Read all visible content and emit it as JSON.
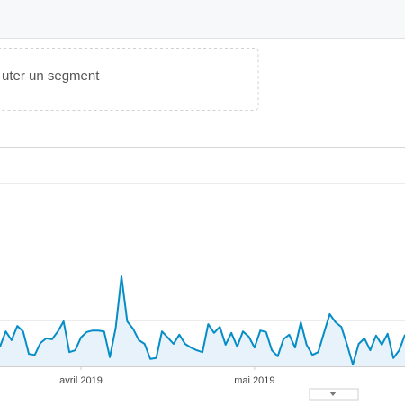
{
  "segment_text": "uter un segment",
  "chart_data": {
    "type": "line",
    "categories": [
      null,
      null,
      null,
      null,
      null,
      null,
      null,
      null,
      null,
      null,
      null,
      null,
      null,
      null,
      "avril 2019",
      null,
      null,
      null,
      null,
      null,
      null,
      null,
      null,
      null,
      null,
      null,
      null,
      null,
      null,
      null,
      null,
      null,
      null,
      null,
      null,
      null,
      null,
      null,
      null,
      null,
      null,
      null,
      null,
      null,
      "mai 2019",
      null,
      null,
      null,
      null,
      null,
      null,
      null,
      null,
      null,
      null,
      null,
      null,
      null,
      null,
      null,
      null,
      null,
      null,
      null,
      null,
      null,
      null,
      null,
      null,
      null,
      null
    ],
    "values": [
      43,
      76,
      57,
      88,
      76,
      27,
      25,
      51,
      61,
      59,
      76,
      98,
      31,
      35,
      63,
      75,
      78,
      78,
      76,
      20,
      84,
      196,
      98,
      82,
      57,
      49,
      16,
      18,
      76,
      63,
      49,
      69,
      49,
      41,
      35,
      31,
      92,
      73,
      86,
      47,
      73,
      43,
      76,
      65,
      41,
      78,
      75,
      35,
      22,
      59,
      69,
      41,
      96,
      47,
      25,
      31,
      73,
      114,
      96,
      86,
      47,
      4,
      49,
      61,
      35,
      67,
      47,
      71,
      18,
      35,
      69
    ],
    "color": "#058dc7",
    "ylim": [
      0,
      400
    ],
    "yticks": [
      0,
      100,
      200,
      300,
      400
    ],
    "grid": true
  }
}
